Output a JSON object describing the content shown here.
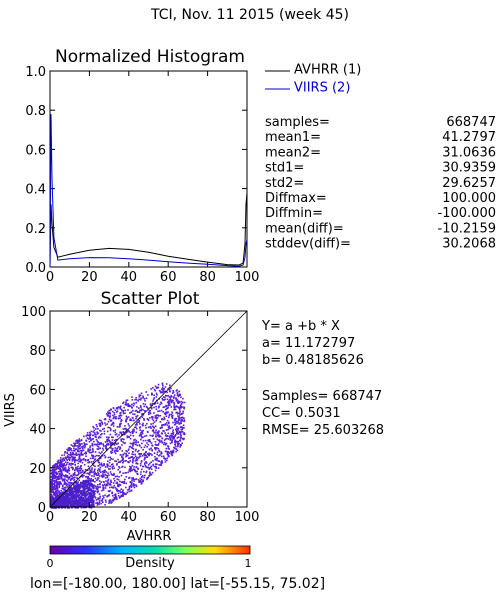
{
  "header": {
    "title": "TCI,   Nov. 11 2015 (week 45)",
    "footer": "lon=[-180.00, 180.00] lat=[-55.15, 75.02]"
  },
  "histogram": {
    "title": "Normalized Histogram",
    "legend": [
      "AVHRR (1)",
      "VIIRS (2)"
    ],
    "stats_labels": [
      "samples=",
      "mean1=",
      "mean2=",
      "std1=",
      "std2=",
      "Diffmax=",
      "Diffmin=",
      "mean(diff)=",
      "stddev(diff)="
    ],
    "stats_values": [
      "668747",
      "41.2797",
      "31.0636",
      "30.9359",
      "29.6257",
      "100.000",
      "-100.000",
      "-10.2159",
      "30.2068"
    ]
  },
  "scatter": {
    "title": "Scatter Plot",
    "equation": "Y= a +b * X",
    "a_text": "a= 11.172797",
    "b_text": "b= 0.48185626",
    "samples_text": "Samples= 668747",
    "cc_text": "CC=  0.5031",
    "rmse_text": "RMSE= 25.603268"
  },
  "colorbar": {
    "label": "Density",
    "min_label": "0",
    "max_label": "1"
  },
  "colors": {
    "avhrr": "#000000",
    "viirs": "#0000cc",
    "scatter": "#5a1fd6",
    "colormap": [
      "#6a00a8",
      "#2a32ff",
      "#00b4ff",
      "#00e0b0",
      "#80ff60",
      "#ffe000",
      "#ff8000",
      "#ff3000"
    ]
  },
  "chart_data": [
    {
      "type": "line",
      "title": "Normalized Histogram",
      "xlim": [
        0,
        100
      ],
      "ylim": [
        0,
        1.0
      ],
      "xticks": [
        0,
        20,
        40,
        60,
        80,
        100
      ],
      "yticks": [
        0.0,
        0.2,
        0.4,
        0.6,
        0.8,
        1.0
      ],
      "series": [
        {
          "name": "AVHRR (1)",
          "x": [
            0,
            0.5,
            1,
            2,
            4,
            10,
            20,
            30,
            40,
            50,
            60,
            70,
            80,
            90,
            96,
            98,
            99,
            99.5,
            100
          ],
          "y": [
            0.0,
            0.32,
            0.22,
            0.1,
            0.05,
            0.065,
            0.085,
            0.095,
            0.09,
            0.075,
            0.055,
            0.04,
            0.025,
            0.012,
            0.01,
            0.02,
            0.12,
            0.32,
            0.38
          ]
        },
        {
          "name": "VIIRS (2)",
          "x": [
            0,
            0.5,
            1,
            2,
            4,
            10,
            20,
            30,
            40,
            50,
            60,
            70,
            80,
            90,
            96,
            98,
            99,
            99.5,
            100
          ],
          "y": [
            0.0,
            0.78,
            0.45,
            0.15,
            0.035,
            0.042,
            0.048,
            0.047,
            0.042,
            0.035,
            0.027,
            0.02,
            0.014,
            0.007,
            0.004,
            0.01,
            0.05,
            0.12,
            0.14
          ]
        }
      ]
    },
    {
      "type": "scatter",
      "title": "Scatter Plot",
      "xlabel": "AVHRR",
      "ylabel": "VIIRS",
      "xlim": [
        0,
        100
      ],
      "ylim": [
        0,
        100
      ],
      "xticks": [
        0,
        20,
        40,
        60,
        80,
        100
      ],
      "yticks": [
        0,
        20,
        40,
        60,
        80,
        100
      ],
      "reference_line": {
        "x": [
          0,
          100
        ],
        "y": [
          0,
          100
        ]
      },
      "fit": {
        "a": 11.172797,
        "b": 0.48185626
      },
      "cloud_envelope": {
        "x": [
          0,
          10,
          20,
          30,
          40,
          50,
          55,
          60,
          65,
          68
        ],
        "y_low": [
          0,
          0,
          0,
          2,
          8,
          15,
          20,
          25,
          30,
          35
        ],
        "y_high": [
          20,
          32,
          40,
          50,
          56,
          60,
          64,
          63,
          60,
          55
        ]
      }
    }
  ]
}
